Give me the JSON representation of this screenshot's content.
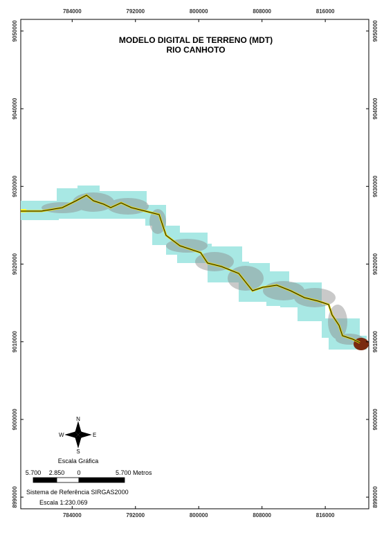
{
  "map": {
    "title": "MODELO DIGITAL DE TERRENO (MDT)",
    "subtitle": "RIO CANHOTO",
    "xlim": [
      777500,
      821500
    ],
    "ylim": [
      8988500,
      9051500
    ],
    "xticks": [
      784000,
      792000,
      800000,
      808000,
      816000
    ],
    "yticks": [
      9050000,
      9040000,
      9030000,
      9020000,
      9010000,
      9000000,
      8990000
    ],
    "compass": {
      "n": "N",
      "s": "S",
      "e": "E",
      "w": "W"
    },
    "scale_title": "Escala Gráfica",
    "scale_labels": [
      "5.700",
      "2.850",
      "0",
      "5.700 Metros"
    ],
    "reference": "Sistema de Referência SIRGAS2000",
    "scale": "Escala  1:230.069"
  }
}
